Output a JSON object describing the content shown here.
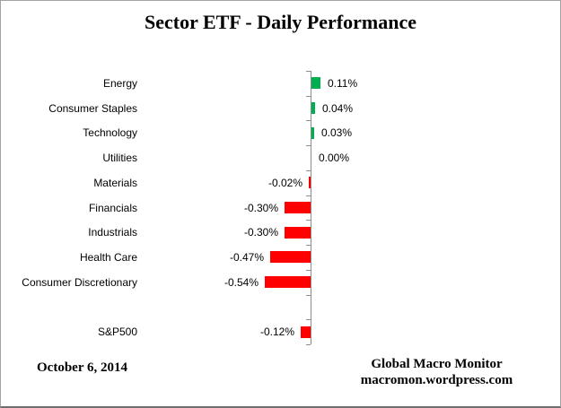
{
  "title": "Sector ETF - Daily Performance",
  "footer": {
    "date": "October 6, 2014",
    "source_line1": "Global Macro Monitor",
    "source_line2": "macromon.wordpress.com"
  },
  "colors": {
    "positive": "#00B050",
    "negative": "#FF0000",
    "axis": "#8C8C8C",
    "text": "#000000",
    "background": "#FFFFFF"
  },
  "chart_data": {
    "type": "bar",
    "orientation": "horizontal",
    "title": "Sector ETF - Daily Performance",
    "categories": [
      "Energy",
      "Consumer Staples",
      "Technology",
      "Utilities",
      "Materials",
      "Financials",
      "Industrials",
      "Health Care",
      "Consumer Discretionary",
      "S&P500"
    ],
    "values": [
      0.11,
      0.04,
      0.03,
      0.0,
      -0.02,
      -0.3,
      -0.3,
      -0.47,
      -0.54,
      -0.12
    ],
    "value_labels": [
      "0.11%",
      "0.04%",
      "0.03%",
      "0.00%",
      "-0.02%",
      "-0.30%",
      "-0.30%",
      "-0.47%",
      "-0.54%",
      "-0.12%"
    ],
    "unit": "percent",
    "baseline": 0,
    "grid": false,
    "legend": false,
    "gridlines": "none",
    "spacer_before_category": "S&P500",
    "positive_color": "#00B050",
    "negative_color": "#FF0000",
    "xlim": [
      -0.75,
      0.55
    ]
  }
}
